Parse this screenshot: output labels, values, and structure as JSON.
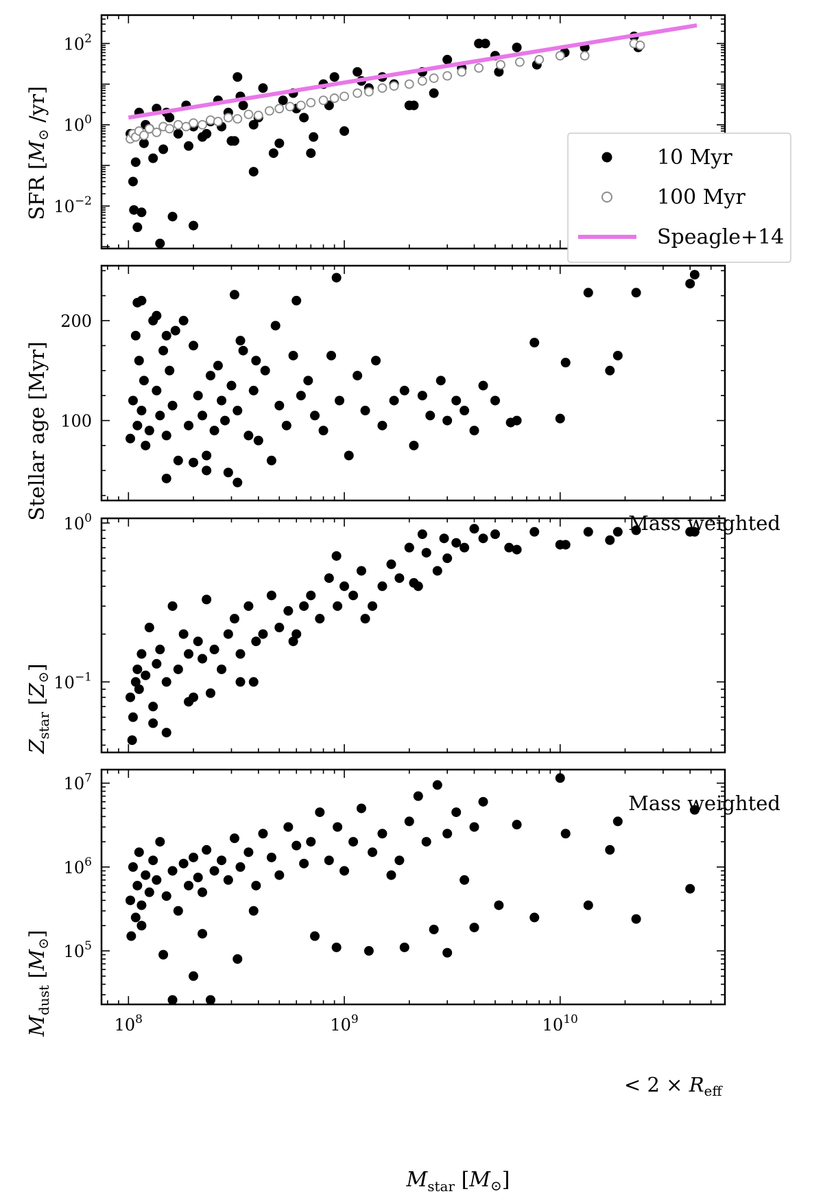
{
  "chart_data": [
    {
      "type": "scatter",
      "panel": "sfr",
      "ylabel": "SFR [M⊙ /yr]",
      "xlabel": "",
      "xscale": "log",
      "yscale": "log",
      "xlim": [
        75000000.0,
        58000000000.0
      ],
      "ylim": [
        0.0009,
        500
      ],
      "yticks": [
        {
          "v": 0.01,
          "base": "10",
          "exp": "−2"
        },
        {
          "v": 1,
          "base": "10",
          "exp": "0"
        },
        {
          "v": 100,
          "base": "10",
          "exp": "2"
        }
      ],
      "legend": {
        "position": "lower-right",
        "entries": [
          "10 Myr",
          "100 Myr",
          "Speagle+14"
        ]
      },
      "series": [
        {
          "name": "10 Myr",
          "marker": "filled-circle",
          "color": "#000000",
          "x": [
            102000000.0,
            105000000.0,
            108000000.0,
            112000000.0,
            118000000.0,
            125000000.0,
            135000000.0,
            145000000.0,
            155000000.0,
            170000000.0,
            185000000.0,
            200000000.0,
            220000000.0,
            240000000.0,
            260000000.0,
            290000000.0,
            310000000.0,
            340000000.0,
            380000000.0,
            420000000.0,
            470000000.0,
            520000000.0,
            580000000.0,
            650000000.0,
            720000000.0,
            800000000.0,
            900000000.0,
            1000000000.0,
            1150000000.0,
            1300000000.0,
            1500000000.0,
            1700000000.0,
            2000000000.0,
            2300000000.0,
            2600000000.0,
            3000000000.0,
            3500000000.0,
            4200000000.0,
            4500000000.0,
            5200000000.0,
            6300000000.0,
            7800000000.0,
            10500000000.0,
            13000000000.0,
            22000000000.0,
            23000000000.0,
            106000000.0,
            110000000.0,
            115000000.0,
            140000000.0,
            160000000.0,
            200000000.0,
            320000000.0,
            300000000.0,
            380000000.0,
            850000000.0,
            1200000000.0,
            2100000000.0,
            5000000000.0,
            120000000.0,
            130000000.0,
            150000000.0,
            190000000.0,
            230000000.0,
            270000000.0,
            330000000.0,
            400000000.0,
            500000000.0,
            600000000.0,
            700000000.0
          ],
          "y": [
            0.6,
            0.04,
            0.12,
            2.0,
            0.35,
            0.8,
            2.5,
            0.25,
            1.5,
            0.6,
            3.0,
            0.9,
            0.5,
            1.2,
            4.0,
            2.0,
            0.4,
            3.0,
            0.07,
            8.0,
            0.2,
            4.0,
            6.0,
            1.5,
            0.5,
            10,
            15,
            0.7,
            20,
            8,
            15,
            10,
            3,
            20,
            6,
            40,
            25,
            100,
            100,
            20,
            80,
            30,
            60,
            80,
            150,
            80,
            0.008,
            0.003,
            0.007,
            0.0012,
            0.0055,
            0.0033,
            15,
            0.4,
            1.0,
            3.0,
            12,
            3.0,
            50,
            1.0,
            0.15,
            2.0,
            0.3,
            0.6,
            0.9,
            5.0,
            1.5,
            0.35,
            2.5,
            0.2
          ]
        },
        {
          "name": "100 Myr",
          "marker": "open-circle",
          "color": "#8c8c8c",
          "x": [
            102000000.0,
            105000000.0,
            108000000.0,
            112000000.0,
            118000000.0,
            125000000.0,
            135000000.0,
            145000000.0,
            155000000.0,
            170000000.0,
            185000000.0,
            200000000.0,
            220000000.0,
            240000000.0,
            260000000.0,
            290000000.0,
            320000000.0,
            360000000.0,
            400000000.0,
            450000000.0,
            500000000.0,
            560000000.0,
            630000000.0,
            700000000.0,
            800000000.0,
            900000000.0,
            1000000000.0,
            1150000000.0,
            1300000000.0,
            1500000000.0,
            1700000000.0,
            2000000000.0,
            2300000000.0,
            2600000000.0,
            3000000000.0,
            3500000000.0,
            4200000000.0,
            5300000000.0,
            6500000000.0,
            8000000000.0,
            10000000000.0,
            13000000000.0,
            22000000000.0,
            23500000000.0
          ],
          "y": [
            0.45,
            0.6,
            0.5,
            0.7,
            0.55,
            0.8,
            0.65,
            0.9,
            0.8,
            1.0,
            0.9,
            1.1,
            1.0,
            1.3,
            1.2,
            1.5,
            1.4,
            1.8,
            1.7,
            2.2,
            2.5,
            2.8,
            3.0,
            3.5,
            4.0,
            4.5,
            5.0,
            6.0,
            6.5,
            8.0,
            9.0,
            10,
            12,
            14,
            16,
            20,
            25,
            30,
            35,
            40,
            50,
            50,
            100,
            90
          ]
        },
        {
          "name": "Speagle+14",
          "type": "line",
          "color": "#e878e8",
          "x": [
            100000000.0,
            43000000000.0
          ],
          "y": [
            1.5,
            280
          ]
        }
      ]
    },
    {
      "type": "scatter",
      "panel": "age",
      "ylabel": "Stellar age [Myr]",
      "xlabel": "",
      "xscale": "log",
      "yscale": "linear",
      "xlim": [
        75000000.0,
        58000000000.0
      ],
      "ylim": [
        20,
        255
      ],
      "yticks": [
        {
          "v": 100,
          "label": "100"
        },
        {
          "v": 200,
          "label": "200"
        }
      ],
      "annotation": "Mass weighted",
      "series": [
        {
          "name": "",
          "marker": "filled-circle",
          "color": "#000000",
          "x": [
            102000000.0,
            105000000.0,
            108000000.0,
            110000000.0,
            112000000.0,
            115000000.0,
            118000000.0,
            120000000.0,
            125000000.0,
            130000000.0,
            135000000.0,
            140000000.0,
            145000000.0,
            150000000.0,
            155000000.0,
            160000000.0,
            170000000.0,
            180000000.0,
            190000000.0,
            200000000.0,
            210000000.0,
            220000000.0,
            230000000.0,
            240000000.0,
            250000000.0,
            260000000.0,
            270000000.0,
            280000000.0,
            290000000.0,
            300000000.0,
            320000000.0,
            340000000.0,
            360000000.0,
            380000000.0,
            400000000.0,
            430000000.0,
            460000000.0,
            500000000.0,
            540000000.0,
            580000000.0,
            630000000.0,
            680000000.0,
            730000000.0,
            800000000.0,
            870000000.0,
            950000000.0,
            1050000000.0,
            1150000000.0,
            1250000000.0,
            1400000000.0,
            1500000000.0,
            1700000000.0,
            1900000000.0,
            2100000000.0,
            2300000000.0,
            2500000000.0,
            2800000000.0,
            3000000000.0,
            3300000000.0,
            3600000000.0,
            4000000000.0,
            4400000000.0,
            5000000000.0,
            5900000000.0,
            6300000000.0,
            7600000000.0,
            10000000000.0,
            10600000000.0,
            13500000000.0,
            17000000000.0,
            18500000000.0,
            22500000000.0,
            40000000000.0,
            42000000000.0,
            110000000.0,
            115000000.0,
            135000000.0,
            150000000.0,
            165000000.0,
            310000000.0,
            330000000.0,
            390000000.0,
            480000000.0,
            600000000.0,
            320000000.0,
            230000000.0,
            200000000.0,
            150000000.0,
            920000000.0
          ],
          "y": [
            82,
            120,
            185,
            95,
            160,
            110,
            140,
            75,
            90,
            200,
            130,
            105,
            170,
            85,
            150,
            115,
            60,
            200,
            95,
            175,
            125,
            105,
            65,
            145,
            90,
            155,
            120,
            100,
            48,
            135,
            110,
            170,
            85,
            130,
            80,
            150,
            60,
            115,
            95,
            165,
            125,
            140,
            105,
            90,
            165,
            120,
            65,
            145,
            110,
            160,
            95,
            120,
            130,
            75,
            125,
            105,
            140,
            100,
            120,
            110,
            90,
            135,
            120,
            98,
            100,
            178,
            102,
            158,
            228,
            150,
            165,
            228,
            237,
            246,
            218,
            220,
            205,
            185,
            190,
            226,
            180,
            160,
            195,
            220,
            38,
            50,
            58,
            42,
            243
          ]
        }
      ]
    },
    {
      "type": "scatter",
      "panel": "metallicity",
      "ylabel": "Z_star [Z⊙]",
      "xlabel": "",
      "xscale": "log",
      "yscale": "log",
      "xlim": [
        75000000.0,
        58000000000.0
      ],
      "ylim": [
        0.036,
        1.07
      ],
      "yticks": [
        {
          "v": 0.1,
          "base": "10",
          "exp": "−1"
        },
        {
          "v": 1,
          "base": "10",
          "exp": "0"
        }
      ],
      "annotation": "Mass weighted",
      "series": [
        {
          "name": "",
          "marker": "filled-circle",
          "color": "#000000",
          "x": [
            102000000.0,
            105000000.0,
            108000000.0,
            110000000.0,
            112000000.0,
            115000000.0,
            120000000.0,
            125000000.0,
            130000000.0,
            135000000.0,
            140000000.0,
            150000000.0,
            160000000.0,
            170000000.0,
            180000000.0,
            190000000.0,
            200000000.0,
            210000000.0,
            220000000.0,
            230000000.0,
            250000000.0,
            270000000.0,
            290000000.0,
            310000000.0,
            330000000.0,
            360000000.0,
            390000000.0,
            420000000.0,
            460000000.0,
            500000000.0,
            550000000.0,
            600000000.0,
            650000000.0,
            700000000.0,
            770000000.0,
            850000000.0,
            930000000.0,
            1000000000.0,
            1100000000.0,
            1200000000.0,
            1350000000.0,
            1500000000.0,
            1650000000.0,
            1800000000.0,
            2000000000.0,
            2200000000.0,
            2400000000.0,
            2700000000.0,
            3000000000.0,
            3300000000.0,
            3600000000.0,
            4000000000.0,
            4400000000.0,
            5000000000.0,
            5800000000.0,
            6300000000.0,
            7600000000.0,
            10000000000.0,
            10600000000.0,
            13500000000.0,
            17000000000.0,
            18500000000.0,
            22500000000.0,
            40000000000.0,
            42000000000.0,
            104000000.0,
            130000000.0,
            150000000.0,
            190000000.0,
            240000000.0,
            330000000.0,
            380000000.0,
            580000000.0,
            920000000.0,
            1250000000.0,
            2100000000.0,
            2000000000.0,
            2300000000.0,
            2900000000.0
          ],
          "y": [
            0.08,
            0.06,
            0.1,
            0.12,
            0.09,
            0.15,
            0.11,
            0.22,
            0.07,
            0.13,
            0.16,
            0.1,
            0.3,
            0.12,
            0.2,
            0.15,
            0.08,
            0.18,
            0.14,
            0.33,
            0.16,
            0.12,
            0.2,
            0.25,
            0.15,
            0.3,
            0.18,
            0.2,
            0.35,
            0.22,
            0.28,
            0.2,
            0.3,
            0.35,
            0.25,
            0.45,
            0.3,
            0.4,
            0.35,
            0.5,
            0.3,
            0.4,
            0.55,
            0.45,
            0.7,
            0.4,
            0.65,
            0.5,
            0.6,
            0.75,
            0.7,
            0.92,
            0.8,
            0.85,
            0.7,
            0.68,
            0.88,
            0.73,
            0.73,
            0.88,
            0.78,
            0.88,
            0.9,
            0.88,
            0.88,
            0.043,
            0.055,
            0.048,
            0.075,
            0.085,
            0.1,
            0.1,
            0.18,
            0.62,
            0.25,
            0.42,
            0.7,
            0.85,
            0.8
          ]
        }
      ]
    },
    {
      "type": "scatter",
      "panel": "dust",
      "ylabel": "M_dust [M⊙]",
      "xlabel": "M_star [M⊙]",
      "xscale": "log",
      "yscale": "log",
      "xlim": [
        75000000.0,
        58000000000.0
      ],
      "ylim": [
        23000,
        14500000
      ],
      "yticks": [
        {
          "v": 100000,
          "base": "10",
          "exp": "5"
        },
        {
          "v": 1000000,
          "base": "10",
          "exp": "6"
        },
        {
          "v": 10000000,
          "base": "10",
          "exp": "7"
        }
      ],
      "xticks": [
        {
          "v": 100000000.0,
          "base": "10",
          "exp": "8"
        },
        {
          "v": 1000000000.0,
          "base": "10",
          "exp": "9"
        },
        {
          "v": 10000000000.0,
          "base": "10",
          "exp": "10"
        }
      ],
      "annotation": "< 2 × R_eff",
      "series": [
        {
          "name": "",
          "marker": "filled-circle",
          "color": "#000000",
          "x": [
            102000000.0,
            105000000.0,
            108000000.0,
            110000000.0,
            112000000.0,
            115000000.0,
            120000000.0,
            125000000.0,
            130000000.0,
            135000000.0,
            140000000.0,
            150000000.0,
            160000000.0,
            170000000.0,
            180000000.0,
            190000000.0,
            200000000.0,
            210000000.0,
            220000000.0,
            230000000.0,
            250000000.0,
            270000000.0,
            290000000.0,
            310000000.0,
            330000000.0,
            360000000.0,
            390000000.0,
            420000000.0,
            460000000.0,
            500000000.0,
            550000000.0,
            600000000.0,
            650000000.0,
            700000000.0,
            770000000.0,
            850000000.0,
            930000000.0,
            1000000000.0,
            1100000000.0,
            1200000000.0,
            1350000000.0,
            1500000000.0,
            1650000000.0,
            1800000000.0,
            2000000000.0,
            2200000000.0,
            2400000000.0,
            2700000000.0,
            3000000000.0,
            3300000000.0,
            3600000000.0,
            4000000000.0,
            4400000000.0,
            5200000000.0,
            6300000000.0,
            7600000000.0,
            10000000000.0,
            10600000000.0,
            13500000000.0,
            17000000000.0,
            18500000000.0,
            22500000000.0,
            40000000000.0,
            42000000000.0,
            145000000.0,
            160000000.0,
            200000000.0,
            240000000.0,
            320000000.0,
            730000000.0,
            920000000.0,
            1300000000.0,
            1900000000.0,
            3000000000.0,
            4000000000.0,
            103000000.0,
            115000000.0,
            220000000.0,
            380000000.0,
            2600000000.0
          ],
          "y": [
            400000,
            1000000,
            250000,
            600000,
            1500000,
            350000,
            800000,
            500000,
            1200000,
            700000,
            2000000,
            450000,
            900000,
            300000,
            1100000,
            600000,
            1300000,
            750000,
            500000,
            1600000,
            900000,
            1200000,
            700000,
            2200000,
            1000000,
            1500000,
            600000,
            2500000,
            1300000,
            800000,
            3000000,
            1800000,
            1100000,
            2000000,
            4500000,
            1200000,
            3000000,
            900000,
            2000000,
            5000000,
            1500000,
            2500000,
            800000,
            1200000,
            3500000,
            7000000,
            2000000,
            9500000,
            2500000,
            4500000,
            700000,
            3000000,
            6000000,
            350000,
            3200000,
            250000,
            11500000,
            2500000,
            350000,
            1600000,
            3500000,
            240000,
            550000,
            4800000,
            90000,
            26000,
            50000,
            26000,
            80000,
            150000,
            110000,
            100000,
            110000,
            95000,
            190000,
            150000,
            200000,
            160000,
            300000,
            180000
          ]
        }
      ]
    }
  ]
}
